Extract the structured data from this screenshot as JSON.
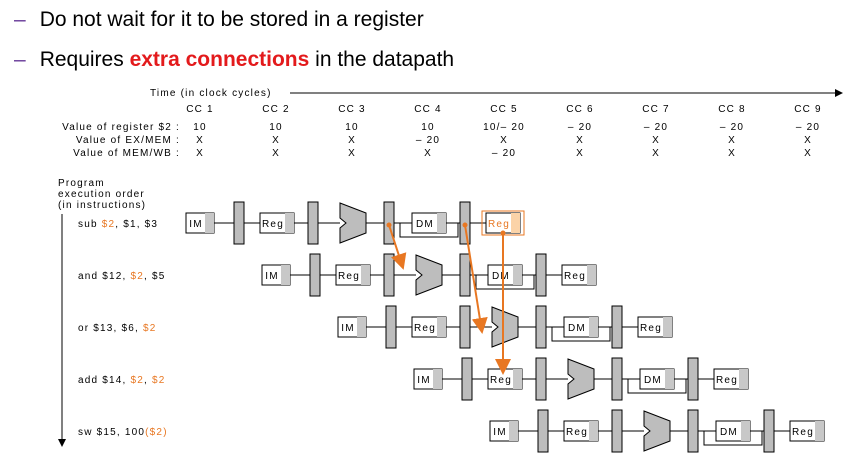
{
  "bullets": [
    {
      "dash": "–",
      "text": "Do not wait for it to be stored in a register"
    },
    {
      "dash": "–",
      "pre": "Requires ",
      "highlight": "extra connections",
      "post": " in the datapath"
    }
  ],
  "time_label": "Time (in clock cycles)",
  "cycles": [
    "CC 1",
    "CC 2",
    "CC 3",
    "CC 4",
    "CC 5",
    "CC 6",
    "CC 7",
    "CC 8",
    "CC 9"
  ],
  "value_rows": [
    {
      "label": "Value of register $2 :",
      "values": [
        "10",
        "10",
        "10",
        "10",
        "10/– 20",
        "– 20",
        "– 20",
        "– 20",
        "– 20"
      ]
    },
    {
      "label": "Value of EX/MEM :",
      "values": [
        "X",
        "X",
        "X",
        "– 20",
        "X",
        "X",
        "X",
        "X",
        "X"
      ]
    },
    {
      "label": "Value of MEM/WB :",
      "values": [
        "X",
        "X",
        "X",
        "X",
        "– 20",
        "X",
        "X",
        "X",
        "X"
      ]
    }
  ],
  "program_label": [
    "Program",
    "execution order",
    "(in instructions)"
  ],
  "stage_labels": {
    "im": "IM",
    "reg": "Reg",
    "dm": "DM"
  },
  "instructions": [
    {
      "parts": [
        {
          "t": "sub ",
          "h": false
        },
        {
          "t": "$2",
          "h": true
        },
        {
          "t": ", $1, $3",
          "h": false
        }
      ]
    },
    {
      "parts": [
        {
          "t": "and $12, ",
          "h": false
        },
        {
          "t": "$2",
          "h": true
        },
        {
          "t": ", $5",
          "h": false
        }
      ]
    },
    {
      "parts": [
        {
          "t": "or $13, $6, ",
          "h": false
        },
        {
          "t": "$2",
          "h": true
        }
      ]
    },
    {
      "parts": [
        {
          "t": "add $14, ",
          "h": false
        },
        {
          "t": "$2",
          "h": true
        },
        {
          "t": ", ",
          "h": false
        },
        {
          "t": "$2",
          "h": true
        }
      ]
    },
    {
      "parts": [
        {
          "t": "sw $15, 100",
          "h": false
        },
        {
          "t": "($2)",
          "h": true
        }
      ]
    }
  ],
  "highlight_reg": [
    [
      false,
      true
    ],
    [
      false,
      true
    ],
    [
      false,
      true
    ],
    [
      false,
      true
    ],
    [
      false,
      true
    ]
  ],
  "colors": {
    "highlight": "#e87722",
    "highlight_fill": "#fbd3a8",
    "register": "#bdbdbd",
    "text": "#000000",
    "bullet_highlight": "#e31a1c",
    "dash": "#6a3d9a"
  }
}
